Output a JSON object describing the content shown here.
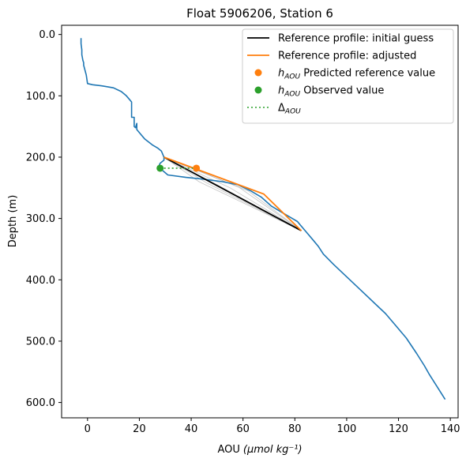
{
  "chart_data": {
    "type": "line",
    "title": "Float 5906206, Station 6",
    "xlabel": "AOU",
    "xlabel_unit": "(μmol kg⁻¹)",
    "ylabel": "Depth (m)",
    "xlim": [
      -10,
      143
    ],
    "ylim": [
      625,
      -15
    ],
    "y_inverted": true,
    "grid": false,
    "legend_placement": "top-right",
    "xticks": [
      0,
      20,
      40,
      60,
      80,
      100,
      120,
      140
    ],
    "xtick_labels": [
      "0",
      "20",
      "40",
      "60",
      "80",
      "100",
      "120",
      "140"
    ],
    "yticks": [
      0,
      100,
      200,
      300,
      400,
      500,
      600
    ],
    "ytick_labels": [
      "0.0",
      "100.0",
      "200.0",
      "300.0",
      "400.0",
      "500.0",
      "600.0"
    ],
    "colors": {
      "profile": "#1f77b4",
      "initial_guess": "#000000",
      "adjusted": "#ff7f0e",
      "predicted": "#ff7f0e",
      "observed": "#2ca02c",
      "delta": "#2ca02c",
      "iterations": "#aaaaaa"
    },
    "profile": {
      "x": [
        -2.5,
        -2.5,
        -2.2,
        -2.2,
        -2,
        -1.8,
        -1.5,
        -1.5,
        -0.5,
        0,
        2,
        6,
        10,
        13,
        15,
        16,
        17,
        17,
        17,
        18,
        18,
        18.5,
        19,
        19,
        19,
        20,
        22,
        25,
        27,
        28.5,
        29.5,
        29.5,
        28,
        27.5,
        28,
        29,
        31,
        38,
        45,
        52,
        58,
        63,
        67,
        71,
        75,
        79,
        81,
        83,
        85,
        87,
        89,
        91,
        95,
        100,
        105,
        110,
        115,
        119,
        123,
        127,
        130,
        132,
        135,
        138
      ],
      "y": [
        6,
        15,
        25,
        33,
        37,
        42,
        46,
        50,
        66,
        80,
        82,
        84,
        87,
        93,
        100,
        105,
        110,
        130,
        135,
        135,
        150,
        152,
        145,
        150,
        155,
        160,
        170,
        180,
        185,
        190,
        200,
        205,
        210,
        215,
        218,
        222,
        229,
        233,
        236,
        240,
        245,
        255,
        265,
        280,
        290,
        300,
        305,
        315,
        325,
        335,
        345,
        358,
        375,
        395,
        415,
        435,
        455,
        475,
        495,
        520,
        540,
        555,
        575,
        595
      ]
    },
    "initial_guess": {
      "x": [
        29.5,
        82.5
      ],
      "y": [
        200,
        320
      ]
    },
    "adjusted": {
      "x": [
        29.5,
        68,
        82.5
      ],
      "y": [
        200,
        260,
        320
      ]
    },
    "iterations": [
      {
        "x": [
          29.5,
          62,
          82.5
        ],
        "y": [
          200,
          255,
          320
        ]
      },
      {
        "x": [
          29.5,
          58,
          82.5
        ],
        "y": [
          200,
          248,
          320
        ]
      },
      {
        "x": [
          29.5,
          55,
          82.5
        ],
        "y": [
          200,
          250,
          320
        ]
      },
      {
        "x": [
          29.5,
          50,
          82.5
        ],
        "y": [
          200,
          245,
          320
        ]
      },
      {
        "x": [
          29.5,
          46,
          82.5
        ],
        "y": [
          200,
          242,
          320
        ]
      },
      {
        "x": [
          29.5,
          43,
          82.5
        ],
        "y": [
          200,
          240,
          320
        ]
      }
    ],
    "predicted": {
      "x": 42,
      "y": 218
    },
    "observed": {
      "x": 28,
      "y": 218
    },
    "legend": [
      {
        "kind": "line",
        "color_key": "initial_guess",
        "label": "Reference profile: initial guess",
        "sub": ""
      },
      {
        "kind": "line",
        "color_key": "adjusted",
        "label": "Reference profile: adjusted",
        "sub": ""
      },
      {
        "kind": "dot",
        "color_key": "predicted",
        "label": " Predicted reference value",
        "sub": "AOU",
        "main": "h"
      },
      {
        "kind": "dot",
        "color_key": "observed",
        "label": " Observed value",
        "sub": "AOU",
        "main": "h"
      },
      {
        "kind": "dotted",
        "color_key": "delta",
        "label": "",
        "sub": "AOU",
        "main": "Δ"
      }
    ]
  }
}
